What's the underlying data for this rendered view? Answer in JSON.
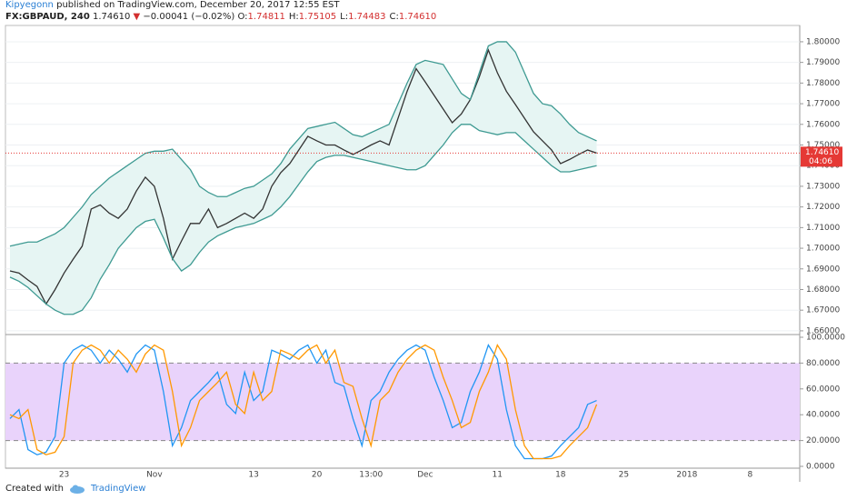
{
  "header": {
    "author": "Kipyegonn",
    "published": "published on TradingView.com, December 20, 2017 12:55 EST",
    "symbol": "FX:GBPAUD, 240",
    "last": "1.74610",
    "change_arrow": "▼",
    "change": "−0.00041 (−0.02%)",
    "ohlc": [
      {
        "key": "O:",
        "value": "1.74811"
      },
      {
        "key": "H:",
        "value": "1.75105"
      },
      {
        "key": "L:",
        "value": "1.74483"
      },
      {
        "key": "C:",
        "value": "1.74610"
      }
    ]
  },
  "footer": {
    "created": "Created with",
    "brand": "TradingView"
  },
  "chart_data": [
    {
      "type": "line",
      "band_fill": {
        "series": [
          1,
          2
        ],
        "color": "#e6f5f3"
      },
      "last_price": {
        "value": 1.7461,
        "label": "1.74610",
        "color": "#e53935"
      },
      "countdown": "04:06",
      "ylim": [
        1.6582,
        1.8079
      ],
      "yticks": [
        {
          "value": 1.66,
          "label": "1.66000"
        },
        {
          "value": 1.67,
          "label": "1.67000"
        },
        {
          "value": 1.68,
          "label": "1.68000"
        },
        {
          "value": 1.69,
          "label": "1.69000"
        },
        {
          "value": 1.7,
          "label": "1.70000"
        },
        {
          "value": 1.71,
          "label": "1.71000"
        },
        {
          "value": 1.72,
          "label": "1.72000"
        },
        {
          "value": 1.73,
          "label": "1.73000"
        },
        {
          "value": 1.74,
          "label": "1.74000"
        },
        {
          "value": 1.75,
          "label": "1.75000"
        },
        {
          "value": 1.76,
          "label": "1.76000"
        },
        {
          "value": 1.77,
          "label": "1.77000"
        },
        {
          "value": 1.78,
          "label": "1.78000"
        },
        {
          "value": 1.79,
          "label": "1.79000"
        },
        {
          "value": 1.8,
          "label": "1.80000"
        }
      ],
      "grid": true,
      "series": [
        {
          "color": "#333333",
          "values": [
            1.689,
            1.688,
            1.6846,
            1.6815,
            1.673,
            1.68,
            1.688,
            1.6947,
            1.701,
            1.719,
            1.721,
            1.717,
            1.7145,
            1.719,
            1.7277,
            1.7344,
            1.73,
            1.7145,
            1.6947,
            1.7035,
            1.712,
            1.712,
            1.719,
            1.71,
            1.712,
            1.7145,
            1.717,
            1.7145,
            1.719,
            1.73,
            1.7366,
            1.741,
            1.7476,
            1.7542,
            1.752,
            1.75,
            1.75,
            1.7476,
            1.7454,
            1.7476,
            1.75,
            1.752,
            1.75,
            1.763,
            1.776,
            1.787,
            1.7806,
            1.774,
            1.7674,
            1.7608,
            1.765,
            1.772,
            1.783,
            1.796,
            1.785,
            1.776,
            1.7696,
            1.763,
            1.7564,
            1.752,
            1.7476,
            1.741,
            1.743,
            1.7454,
            1.7476,
            1.7461,
            null,
            null,
            null,
            null,
            null,
            null,
            null,
            null,
            null,
            null,
            null,
            null,
            null,
            null,
            null,
            null,
            null,
            null,
            null,
            null,
            null,
            null
          ]
        },
        {
          "color": "#3e9a92",
          "values": [
            1.701,
            1.702,
            1.703,
            1.703,
            1.705,
            1.707,
            1.71,
            1.715,
            1.72,
            1.726,
            1.73,
            1.734,
            1.737,
            1.74,
            1.743,
            1.746,
            1.747,
            1.747,
            1.748,
            1.743,
            1.738,
            1.73,
            1.727,
            1.725,
            1.725,
            1.727,
            1.729,
            1.73,
            1.733,
            1.736,
            1.741,
            1.748,
            1.753,
            1.758,
            1.759,
            1.76,
            1.761,
            1.758,
            1.755,
            1.754,
            1.756,
            1.758,
            1.76,
            1.77,
            1.78,
            1.789,
            1.791,
            1.79,
            1.789,
            1.782,
            1.775,
            1.772,
            1.785,
            1.798,
            1.8,
            1.8,
            1.795,
            1.785,
            1.775,
            1.77,
            1.769,
            1.765,
            1.76,
            1.756,
            1.754,
            1.752,
            null,
            null,
            null,
            null,
            null,
            null,
            null,
            null,
            null,
            null,
            null,
            null,
            null,
            null,
            null,
            null,
            null,
            null,
            null,
            null,
            null,
            null
          ]
        },
        {
          "color": "#3e9a92",
          "values": [
            1.686,
            1.684,
            1.681,
            1.677,
            1.673,
            1.67,
            1.668,
            1.668,
            1.67,
            1.676,
            1.685,
            1.692,
            1.7,
            1.705,
            1.71,
            1.713,
            1.714,
            1.705,
            1.695,
            1.689,
            1.692,
            1.698,
            1.703,
            1.706,
            1.708,
            1.71,
            1.711,
            1.712,
            1.714,
            1.716,
            1.72,
            1.725,
            1.731,
            1.737,
            1.742,
            1.744,
            1.745,
            1.745,
            1.744,
            1.743,
            1.742,
            1.741,
            1.74,
            1.739,
            1.738,
            1.738,
            1.74,
            1.745,
            1.75,
            1.756,
            1.76,
            1.76,
            1.757,
            1.756,
            1.755,
            1.756,
            1.756,
            1.752,
            1.748,
            1.744,
            1.74,
            1.737,
            1.737,
            1.738,
            1.739,
            1.74,
            null,
            null,
            null,
            null,
            null,
            null,
            null,
            null,
            null,
            null,
            null,
            null,
            null,
            null,
            null,
            null,
            null,
            null,
            null,
            null,
            null,
            null
          ]
        }
      ]
    },
    {
      "type": "line",
      "zone": {
        "from": 20,
        "to": 80,
        "color": "#e9d3fb"
      },
      "ylim": [
        -1.4,
        102.1
      ],
      "yticks": [
        {
          "value": 0,
          "label": "0.0000"
        },
        {
          "value": 20,
          "label": "20.0000"
        },
        {
          "value": 40,
          "label": "40.0000"
        },
        {
          "value": 60,
          "label": "60.0000"
        },
        {
          "value": 80,
          "label": "80.0000"
        },
        {
          "value": 100,
          "label": "100.0000"
        }
      ],
      "categories": [
        null,
        null,
        null,
        null,
        null,
        null,
        "23",
        null,
        null,
        null,
        null,
        null,
        null,
        null,
        null,
        null,
        "Nov",
        null,
        null,
        null,
        null,
        null,
        null,
        null,
        null,
        null,
        null,
        "13",
        null,
        null,
        null,
        null,
        null,
        null,
        "20",
        null,
        null,
        null,
        null,
        null,
        "13:00",
        null,
        null,
        null,
        null,
        null,
        "Dec",
        null,
        null,
        null,
        null,
        null,
        null,
        null,
        "11",
        null,
        null,
        null,
        null,
        null,
        null,
        "18",
        null,
        null,
        null,
        null,
        null,
        null,
        "25",
        null,
        null,
        null,
        null,
        null,
        null,
        "2018",
        null,
        null,
        null,
        null,
        null,
        null,
        "8",
        null,
        null,
        null,
        null,
        null
      ],
      "series": [
        {
          "color": "#2196f3",
          "values": [
            37,
            44,
            13,
            9,
            11,
            23,
            80,
            90,
            94,
            90,
            80,
            90,
            83,
            73,
            87,
            94,
            90,
            58,
            16,
            30,
            51,
            58,
            65,
            73,
            48,
            41,
            73,
            51,
            58,
            90,
            87,
            83,
            90,
            94,
            80,
            90,
            65,
            62,
            37,
            16,
            51,
            58,
            73,
            83,
            90,
            94,
            90,
            69,
            51,
            30,
            34,
            58,
            73,
            94,
            83,
            44,
            16,
            6,
            6,
            6,
            8,
            16,
            23,
            30,
            48,
            51,
            null,
            null,
            null,
            null,
            null,
            null,
            null,
            null,
            null,
            null,
            null,
            null,
            null,
            null,
            null,
            null,
            null,
            null,
            null,
            null,
            null,
            null
          ]
        },
        {
          "color": "#ff9800",
          "values": [
            40,
            37,
            44,
            13,
            9,
            11,
            23,
            80,
            90,
            94,
            90,
            80,
            90,
            83,
            73,
            87,
            94,
            90,
            58,
            16,
            30,
            51,
            58,
            65,
            73,
            48,
            41,
            73,
            51,
            58,
            90,
            87,
            83,
            90,
            94,
            80,
            90,
            65,
            62,
            37,
            16,
            51,
            58,
            73,
            83,
            90,
            94,
            90,
            69,
            51,
            30,
            34,
            58,
            73,
            94,
            83,
            44,
            16,
            6,
            6,
            6,
            8,
            16,
            23,
            30,
            48,
            null,
            null,
            null,
            null,
            null,
            null,
            null,
            null,
            null,
            null,
            null,
            null,
            null,
            null,
            null,
            null,
            null,
            null,
            null,
            null,
            null,
            null
          ]
        }
      ]
    }
  ]
}
